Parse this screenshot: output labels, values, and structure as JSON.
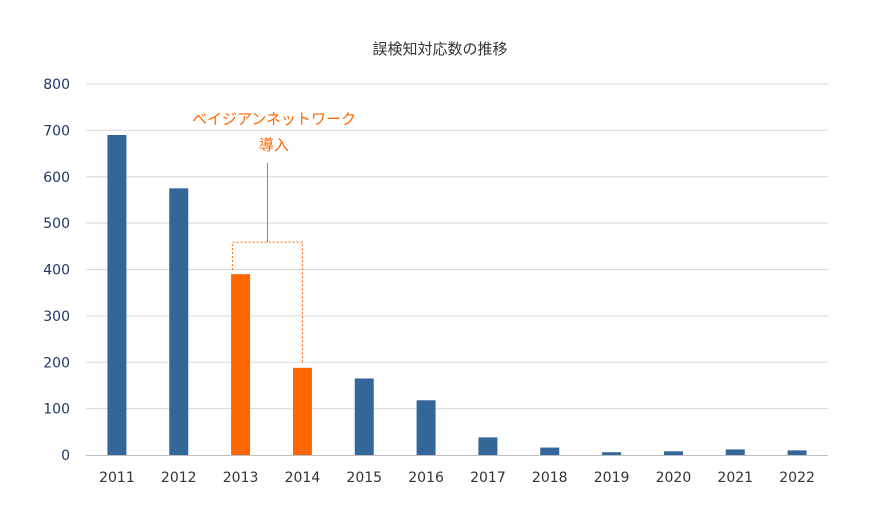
{
  "chart_data": {
    "type": "bar",
    "title": "誤検知対応数の推移",
    "xlabel": "",
    "ylabel": "",
    "ylim": [
      0,
      800
    ],
    "yticks": [
      0,
      100,
      200,
      300,
      400,
      500,
      600,
      700,
      800
    ],
    "grid": true,
    "categories": [
      "2011",
      "2012",
      "2013",
      "2014",
      "2015",
      "2016",
      "2017",
      "2018",
      "2019",
      "2020",
      "2021",
      "2022"
    ],
    "values": [
      690,
      575,
      390,
      188,
      165,
      118,
      38,
      16,
      6,
      8,
      12,
      10
    ],
    "highlight": [
      "2013",
      "2014"
    ],
    "colors": {
      "base": "#336699",
      "highlight": "#ff6600",
      "grid": "#d9d9d9",
      "axis": "#bfbfbf"
    },
    "annotation": {
      "line1": "ベイジアンネットワーク",
      "line2": "導入"
    }
  }
}
